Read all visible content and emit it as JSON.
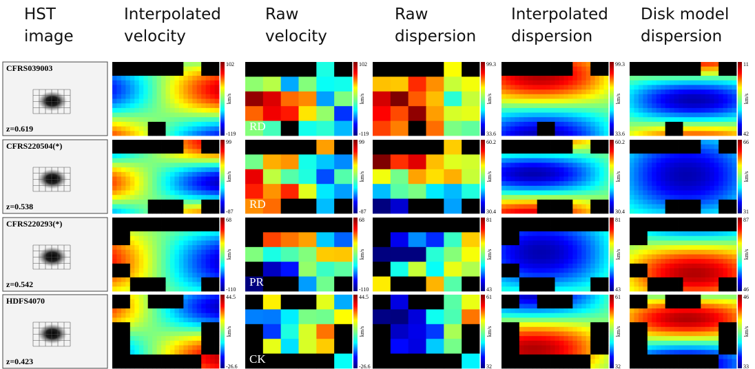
{
  "headers": [
    [
      "HST",
      "image"
    ],
    [
      "Interpolated",
      "velocity"
    ],
    [
      "Raw",
      "velocity"
    ],
    [
      "Raw",
      "dispersion"
    ],
    [
      "Interpolated",
      "dispersion"
    ],
    [
      "Disk model",
      "dispersion"
    ]
  ],
  "unit": "km/s",
  "rows": [
    {
      "name": "CFRS039003",
      "z": "z=0.619",
      "class": "RD",
      "scales": [
        [
          "102",
          "-119"
        ],
        [
          "102",
          "-119"
        ],
        [
          "99.3",
          "33.6"
        ],
        [
          "99.3",
          "33.6"
        ],
        [
          "11",
          "42"
        ]
      ]
    },
    {
      "name": "CFRS220504(*)",
      "z": "z=0.538",
      "class": "RD",
      "scales": [
        [
          "99",
          "-87"
        ],
        [
          "99",
          "-87"
        ],
        [
          "60.2",
          "30.4"
        ],
        [
          "60.2",
          "30.4"
        ],
        [
          "66",
          "31"
        ]
      ]
    },
    {
      "name": "CFRS220293(*)",
      "z": "z=0.542",
      "class": "PR",
      "scales": [
        [
          "68",
          "-110"
        ],
        [
          "68",
          "-110"
        ],
        [
          "81",
          "43"
        ],
        [
          "81",
          "43"
        ],
        [
          "87",
          "46"
        ]
      ]
    },
    {
      "name": "HDFS4070",
      "z": "z=0.423",
      "class": "CK",
      "scales": [
        [
          "44.5",
          "-26.6"
        ],
        [
          "44.5",
          "-26.6"
        ],
        [
          "61",
          "32"
        ],
        [
          "61",
          "32"
        ],
        [
          "46",
          "33"
        ]
      ]
    }
  ]
}
